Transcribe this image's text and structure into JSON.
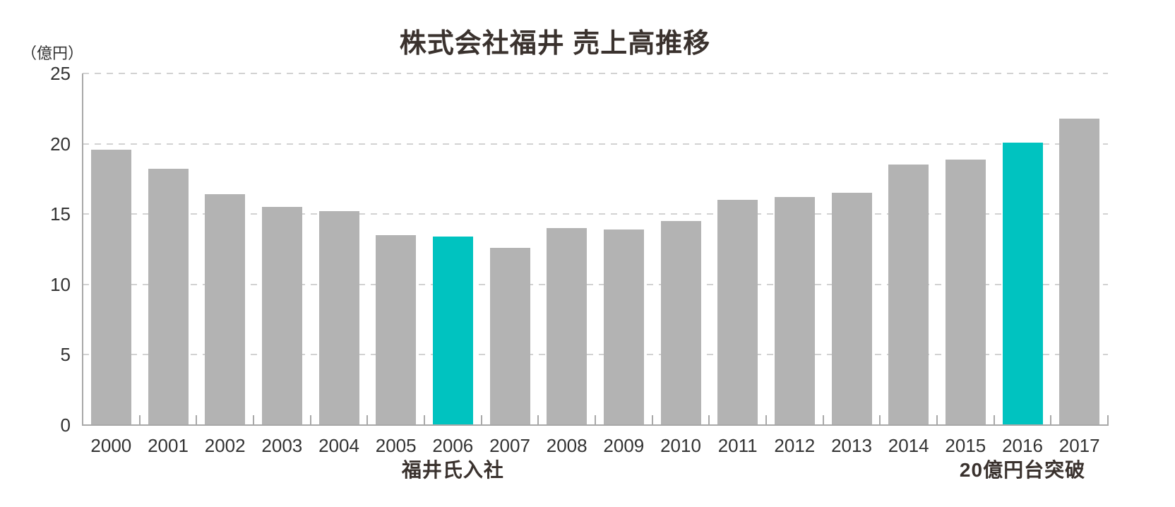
{
  "chart_data": {
    "type": "bar",
    "title": "株式会社福井 売上高推移",
    "unit_label": "（億円）",
    "xlabel": "",
    "ylabel": "億円",
    "categories": [
      "2000",
      "2001",
      "2002",
      "2003",
      "2004",
      "2005",
      "2006",
      "2007",
      "2008",
      "2009",
      "2010",
      "2011",
      "2012",
      "2013",
      "2014",
      "2015",
      "2016",
      "2017"
    ],
    "values": [
      19.6,
      18.2,
      16.4,
      15.5,
      15.2,
      13.5,
      13.4,
      12.6,
      14.0,
      13.9,
      14.5,
      16.0,
      16.2,
      16.5,
      18.5,
      18.9,
      20.1,
      21.8
    ],
    "ylim": [
      0,
      25
    ],
    "yticks": [
      0,
      5,
      10,
      15,
      20,
      25
    ],
    "grid": "horizontal-dashed",
    "legend": "none",
    "highlighted_categories": [
      "2006",
      "2016"
    ],
    "annotations": [
      {
        "text": "福井氏入社",
        "category": "2006"
      },
      {
        "text": "20億円台突破",
        "category": "2016"
      }
    ]
  },
  "colors": {
    "bar": "#b3b3b3",
    "highlight": "#00c3c0",
    "axis": "#a8a8a8",
    "grid": "#d2d2d2",
    "tick_text": "#333333",
    "title_text": "#3a322e",
    "background": "#ffffff"
  }
}
